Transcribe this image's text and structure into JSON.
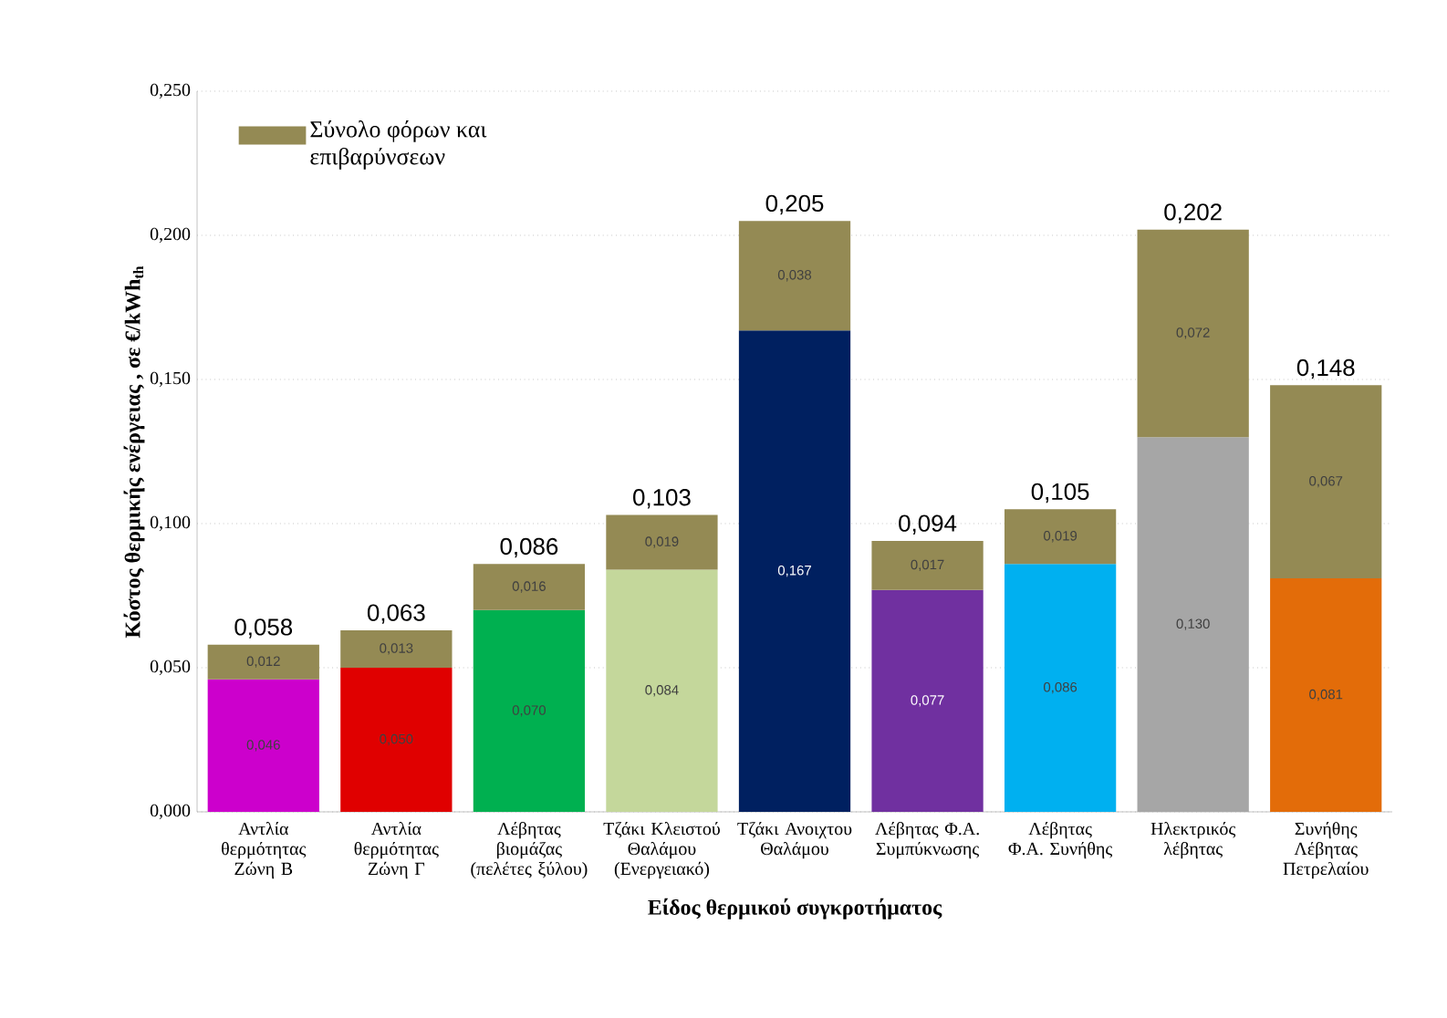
{
  "chart_data": {
    "type": "bar",
    "stacked": true,
    "xlabel": "Είδος θερμικού συγκροτήματος",
    "ylabel": "Κόστος θερμικής ενέργειας , σε €/kWh$_{th}$",
    "categories": [
      "Αντλία θερμότητας Ζώνη Β",
      "Αντλία θερμότητας Ζώνη Γ",
      "Λέβητας βιομάζας (πελέτες ξύλου)",
      "Τζάκι Κλειστού Θαλάμου (Ενεργειακό)",
      "Τζάκι Ανοιχτου Θαλάμου",
      "Λέβητας Φ.Α. Συμπύκνωσης",
      "Λέβητας Φ.Α. Συνήθης",
      "Ηλεκτρικός λέβητας",
      "Συνήθης Λέβητας Πετρελαίου"
    ],
    "series": [
      {
        "colors": [
          "#cc00cc",
          "#e00000",
          "#00b050",
          "#c4d79b",
          "#002060",
          "#7030a0",
          "#00b0f0",
          "#a6a6a6",
          "#e36c09"
        ],
        "values": [
          0.046,
          0.05,
          0.07,
          0.084,
          0.167,
          0.077,
          0.086,
          0.13,
          0.081
        ],
        "value_labels": [
          "0,046",
          "0,050",
          "0,070",
          "0,084",
          "0,167",
          "0,077",
          "0,086",
          "0,130",
          "0,081"
        ]
      },
      {
        "name": "Σύνολο φόρων και επιβαρύνσεων",
        "color": "#948a54",
        "values": [
          0.012,
          0.013,
          0.016,
          0.019,
          0.038,
          0.017,
          0.019,
          0.072,
          0.067
        ],
        "value_labels": [
          "0,012",
          "0,013",
          "0,016",
          "0,019",
          "0,038",
          "0,017",
          "0,019",
          "0,072",
          "0,067"
        ]
      }
    ],
    "totals": [
      "0,058",
      "0,063",
      "0,086",
      "0,103",
      "0,205",
      "0,094",
      "0,105",
      "0,202",
      "0,148"
    ],
    "ylim": [
      0,
      0.25
    ],
    "yticks": [
      {
        "value": 0,
        "label": "0,000"
      },
      {
        "value": 0.05,
        "label": "0,050"
      },
      {
        "value": 0.1,
        "label": "0,100"
      },
      {
        "value": 0.15,
        "label": "0,150"
      },
      {
        "value": 0.2,
        "label": "0,200"
      },
      {
        "value": 0.25,
        "label": "0,250"
      }
    ],
    "grid": "y",
    "legend": "top left"
  }
}
